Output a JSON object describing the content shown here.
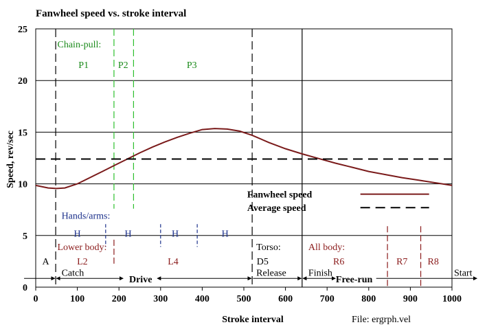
{
  "chart_data": {
    "type": "line",
    "title": "Fanwheel speed vs. stroke interval",
    "xlabel": "Stroke interval",
    "ylabel": "Speed, rev/sec",
    "xlim": [
      0,
      1000
    ],
    "ylim": [
      0,
      25
    ],
    "x_ticks": [
      "0",
      "100",
      "200",
      "300",
      "400",
      "500",
      "600",
      "700",
      "800",
      "900",
      "1000"
    ],
    "y_ticks": [
      "0",
      "5",
      "10",
      "15",
      "20",
      "25"
    ],
    "grid": "horizontal",
    "legend_position": "right",
    "series": [
      {
        "name": "Fanwheel speed",
        "color": "#7a1a1a",
        "x": [
          0,
          30,
          50,
          70,
          100,
          130,
          160,
          190,
          220,
          250,
          280,
          310,
          340,
          370,
          400,
          430,
          460,
          490,
          520,
          560,
          600,
          640,
          680,
          720,
          760,
          800,
          840,
          880,
          920,
          960,
          1000
        ],
        "y": [
          9.85,
          9.6,
          9.55,
          9.6,
          10.0,
          10.6,
          11.2,
          11.8,
          12.4,
          13.0,
          13.55,
          14.05,
          14.5,
          14.9,
          15.25,
          15.35,
          15.3,
          15.1,
          14.7,
          14.0,
          13.4,
          12.9,
          12.45,
          12.0,
          11.6,
          11.2,
          10.9,
          10.6,
          10.35,
          10.1,
          9.85
        ]
      },
      {
        "name": "Average speed",
        "color": "#000000",
        "x": [
          0,
          1000
        ],
        "y": [
          12.4,
          12.4
        ]
      }
    ],
    "vlines": {
      "black": [
        48,
        520,
        640
      ],
      "green": [
        188,
        235
      ],
      "blue": [
        168,
        300,
        388
      ],
      "red": [
        188,
        845,
        925
      ]
    },
    "annotations": {
      "chain_pull_label": "Chain-pull:",
      "chain_phases": [
        {
          "text": "P1",
          "x": 115
        },
        {
          "text": "P2",
          "x": 210
        },
        {
          "text": "P3",
          "x": 375
        }
      ],
      "hands_label": "Hands/arms:",
      "hands_phases": [
        {
          "text": "H",
          "x": 100
        },
        {
          "text": "H",
          "x": 222
        },
        {
          "text": "H",
          "x": 335
        },
        {
          "text": "H",
          "x": 455
        }
      ],
      "lower_label": "Lower body:",
      "torso_label": "Torso:",
      "all_label": "All body:",
      "body_phases": [
        {
          "text": "A",
          "x": 24
        },
        {
          "text": "L2",
          "x": 112
        },
        {
          "text": "L4",
          "x": 330
        },
        {
          "text": "D5",
          "x": 545
        },
        {
          "text": "R6",
          "x": 728
        },
        {
          "text": "R7",
          "x": 880
        },
        {
          "text": "R8",
          "x": 955
        }
      ],
      "events": {
        "catch": "Catch",
        "release": "Release",
        "finish": "Finish",
        "drive": "Drive",
        "free_run": "Free-run",
        "start": "Start"
      },
      "file_label": "File: ergrph.vel"
    }
  }
}
